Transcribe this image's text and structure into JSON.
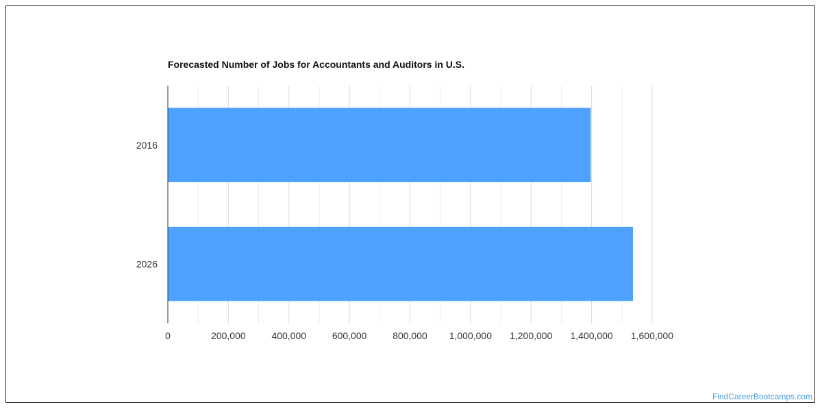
{
  "colors": {
    "bar": "#4ea1ff",
    "gridline": "#d9d9d9",
    "axis": "#333333",
    "watermark": "#4a9fe0"
  },
  "chart_data": {
    "type": "bar",
    "orientation": "horizontal",
    "title": "Forecasted Number of Jobs for Accountants and Auditors in U.S.",
    "xlabel": "",
    "ylabel": "",
    "categories": [
      "2016",
      "2026"
    ],
    "values": [
      1397100,
      1536700
    ],
    "xlim": [
      0,
      1600000
    ],
    "xticks": [
      0,
      200000,
      400000,
      600000,
      800000,
      1000000,
      1200000,
      1400000,
      1600000
    ],
    "xtick_labels": [
      "0",
      "200,000",
      "400,000",
      "600,000",
      "800,000",
      "1,000,000",
      "1,200,000",
      "1,400,000",
      "1,600,000"
    ],
    "grid": true,
    "legend": "none"
  },
  "watermark": "FindCareerBootcamps.com"
}
